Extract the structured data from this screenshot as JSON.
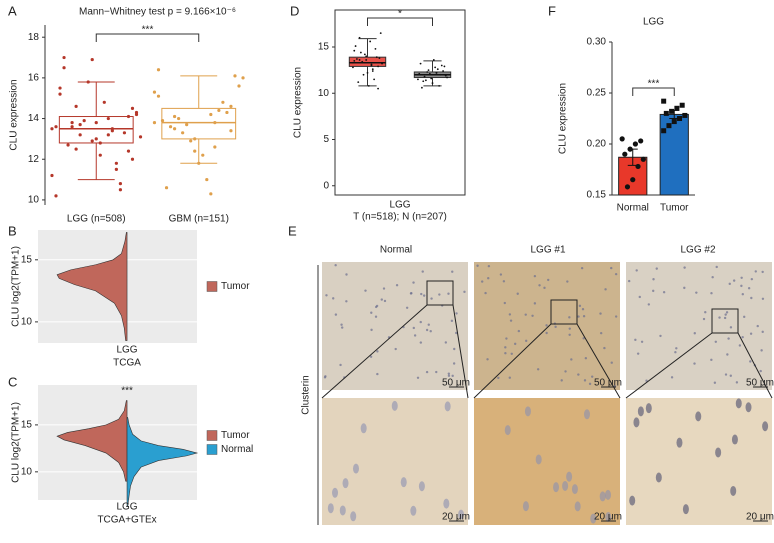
{
  "chart_data": [
    {
      "type": "box",
      "panel": "A",
      "title": "Mann−Whitney test p = 9.166×10⁻⁶",
      "ylabel": "CLU expression",
      "categories": [
        "LGG (n=508)",
        "GBM (n=151)"
      ],
      "annotation": "***",
      "filled": false,
      "ylim": [
        9.75,
        18.6
      ],
      "yticks": [
        10,
        12,
        14,
        16,
        18
      ],
      "boxes": [
        {
          "color": "#b5372a",
          "min": 11.0,
          "q1": 12.8,
          "median": 13.5,
          "q3": 14.1,
          "max": 15.8,
          "points": [
            13.5,
            13.2,
            13.8,
            14.1,
            12.9,
            13.6,
            13.4,
            12.5,
            14.5,
            13.0,
            15.2,
            11.8,
            13.7,
            14.3,
            12.2,
            16.5,
            10.8,
            13.9,
            13.1,
            14.8,
            12.7,
            13.3,
            15.8,
            11.2,
            14.0,
            13.6,
            12.4,
            16.9,
            10.2,
            13.5,
            14.6,
            12.0,
            13.8,
            15.5,
            11.5,
            13.2,
            14.2,
            12.8,
            17.0,
            10.5
          ]
        },
        {
          "color": "#dfa04c",
          "min": 11.8,
          "q1": 13.0,
          "median": 13.8,
          "q3": 14.5,
          "max": 16.1,
          "points": [
            13.8,
            14.2,
            13.5,
            14.6,
            13.0,
            15.1,
            12.6,
            14.0,
            16.1,
            11.8,
            13.9,
            14.4,
            13.3,
            15.6,
            12.2,
            10.6,
            14.8,
            13.7,
            16.0,
            11.0,
            13.6,
            14.3,
            12.9,
            15.3,
            10.3,
            14.1,
            13.4,
            12.4,
            16.4,
            13.8
          ]
        }
      ]
    },
    {
      "type": "box",
      "panel": "D",
      "ylabel": "CLU expression",
      "xlabel": "LGG",
      "subtitle": "T (n=518); N (n=207)",
      "annotation": "*",
      "annotation_color": "#e8242a",
      "filled": true,
      "point_color": "#111111",
      "ylim": [
        -1,
        19
      ],
      "yticks": [
        0,
        5,
        10,
        15
      ],
      "boxes": [
        {
          "color": "#e8524a",
          "min": 10.8,
          "q1": 12.9,
          "median": 13.3,
          "q3": 13.9,
          "max": 15.9,
          "points": [
            13.3,
            13.1,
            13.6,
            12.9,
            14.0,
            13.5,
            12.6,
            14.4,
            13.8,
            12.2,
            15.1,
            11.5,
            13.4,
            16.5,
            10.8,
            13.7,
            14.8,
            12.0,
            13.2,
            15.6,
            11.2,
            13.9,
            14.2,
            12.8,
            13.0,
            16.0,
            10.5,
            13.6,
            14.6,
            12.4
          ]
        },
        {
          "color": "#8c8c8c",
          "min": 10.8,
          "q1": 11.7,
          "median": 12.0,
          "q3": 12.3,
          "max": 13.5,
          "points": [
            12.0,
            12.2,
            11.8,
            12.4,
            11.6,
            12.1,
            12.6,
            11.4,
            12.9,
            11.1,
            13.2,
            10.8,
            12.3,
            11.9,
            13.6,
            10.6,
            12.0,
            12.5,
            11.7,
            12.8,
            11.3,
            13.0,
            12.1,
            11.5,
            12.2
          ]
        }
      ]
    },
    {
      "type": "bar",
      "panel": "F",
      "title": "LGG",
      "ylabel": "CLU expression",
      "annotation": "***",
      "categories": [
        "Normal",
        "Tumor"
      ],
      "values": [
        0.187,
        0.229
      ],
      "errors": [
        0.008,
        0.004
      ],
      "colors": [
        "#e8382a",
        "#1f6fbf"
      ],
      "markers": [
        "circle",
        "square"
      ],
      "points": [
        [
          0.205,
          0.203,
          0.2,
          0.195,
          0.19,
          0.185,
          0.178,
          0.165,
          0.158
        ],
        [
          0.242,
          0.238,
          0.235,
          0.232,
          0.23,
          0.228,
          0.225,
          0.222,
          0.218,
          0.213
        ]
      ],
      "ylim": [
        0.15,
        0.3
      ],
      "yticks": [
        0.15,
        {
          "value": 0.2,
          "label": "0.20"
        },
        0.25,
        {
          "value": 0.3,
          "label": "0.30"
        }
      ]
    },
    {
      "type": "violin",
      "panel": "B",
      "ylabel": "CLU log2(TPM+1)",
      "categories": [
        "LGG"
      ],
      "xlabel": "TCGA",
      "legend": "right",
      "ylim": [
        8.3,
        17.4
      ],
      "yticks": [
        10,
        15
      ],
      "series": [
        {
          "name": "Tumor",
          "color": "#c0675b",
          "side": "left",
          "values": [
            8.5,
            9.5,
            10.5,
            11.5,
            12.5,
            13.0,
            13.5,
            13.8,
            14.2,
            14.6,
            15.0,
            15.5,
            16.5,
            17.2
          ],
          "density": [
            0.02,
            0.04,
            0.08,
            0.18,
            0.45,
            0.75,
            0.97,
            1.0,
            0.8,
            0.45,
            0.2,
            0.08,
            0.03,
            0.01
          ]
        }
      ]
    },
    {
      "type": "violin",
      "panel": "C",
      "ylabel": "CLU log2(TPM+1)",
      "categories": [
        "LGG"
      ],
      "xlabel": "TCGA+GTEx",
      "legend": "right",
      "annotation": "***",
      "ylim": [
        7.0,
        19.25
      ],
      "yticks": [
        10,
        15
      ],
      "series": [
        {
          "name": "Tumor",
          "color": "#c0675b",
          "side": "left",
          "values": [
            9,
            10,
            11,
            12,
            12.8,
            13.4,
            13.8,
            14.2,
            14.6,
            15,
            15.6,
            16.5,
            17.6
          ],
          "density": [
            0.02,
            0.05,
            0.12,
            0.3,
            0.6,
            0.9,
            1.0,
            0.85,
            0.55,
            0.3,
            0.12,
            0.04,
            0.01
          ]
        },
        {
          "name": "Normal",
          "color": "#2a9fd0",
          "side": "right",
          "values": [
            6.3,
            7.5,
            8.5,
            9.5,
            10.5,
            11.2,
            11.7,
            12.0,
            12.4,
            12.8,
            13.3,
            14,
            15,
            15.8
          ],
          "density": [
            0.01,
            0.03,
            0.05,
            0.1,
            0.2,
            0.45,
            0.85,
            1.0,
            0.8,
            0.45,
            0.2,
            0.08,
            0.03,
            0.01
          ]
        }
      ]
    }
  ],
  "image_panel": {
    "label": "E",
    "columns": [
      "Normal",
      "LGG #1",
      "LGG #2"
    ],
    "row_label": "Clusterin",
    "scale_bars": [
      "50 μm",
      "20 μm"
    ]
  }
}
